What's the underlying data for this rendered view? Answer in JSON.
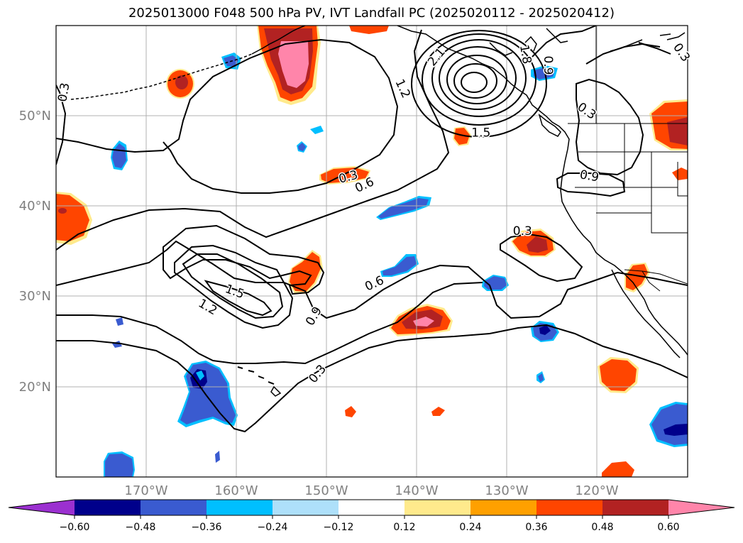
{
  "title": "2025013000 F048 500 hPa PV, IVT Landfall PC (2025020112 - 2025020412)",
  "map": {
    "projection": "plate carree",
    "lon_range": [
      -180,
      -110
    ],
    "lat_range": [
      10,
      60
    ],
    "grid": true,
    "lat_ticks": [
      {
        "value": 50,
        "label": "50°N"
      },
      {
        "value": 40,
        "label": "40°N"
      },
      {
        "value": 30,
        "label": "30°N"
      },
      {
        "value": 20,
        "label": "20°N"
      }
    ],
    "lon_ticks": [
      {
        "value": -170,
        "label": "170°W"
      },
      {
        "value": -160,
        "label": "160°W"
      },
      {
        "value": -150,
        "label": "150°W"
      },
      {
        "value": -140,
        "label": "140°W"
      },
      {
        "value": -130,
        "label": "130°W"
      },
      {
        "value": -120,
        "label": "120°W"
      }
    ]
  },
  "colorbar": {
    "ticks": [
      "−0.60",
      "−0.48",
      "−0.36",
      "−0.24",
      "−0.12",
      "0.12",
      "0.24",
      "0.36",
      "0.48",
      "0.60"
    ],
    "colors": [
      "#9b30d0",
      "#00008b",
      "#3a5bd0",
      "#00bfff",
      "#aee0fa",
      "#ffffff",
      "#ffea8c",
      "#ffa000",
      "#ff4500",
      "#b22222",
      "#ff85aa"
    ],
    "extend": "both"
  },
  "contour_labels": [
    {
      "text": "0.3",
      "lon": -179.1,
      "lat": 52.6,
      "angle": -80
    },
    {
      "text": "1.5",
      "lon": -132.9,
      "lat": 48.1,
      "angle": 0
    },
    {
      "text": "1.2",
      "lon": -141.6,
      "lat": 53.0,
      "angle": 65
    },
    {
      "text": "2.1",
      "lon": -137.8,
      "lat": 56.5,
      "angle": -50
    },
    {
      "text": "1.8",
      "lon": -128.0,
      "lat": 56.8,
      "angle": 80
    },
    {
      "text": "0.9",
      "lon": -125.5,
      "lat": 55.6,
      "angle": 90
    },
    {
      "text": "0.3",
      "lon": -121.2,
      "lat": 50.5,
      "angle": 35
    },
    {
      "text": "0.3",
      "lon": -110.7,
      "lat": 57.0,
      "angle": 55
    },
    {
      "text": "0.9",
      "lon": -120.9,
      "lat": 43.3,
      "angle": 10
    },
    {
      "text": "0.3",
      "lon": -147.6,
      "lat": 43.2,
      "angle": -15
    },
    {
      "text": "0.6",
      "lon": -145.8,
      "lat": 42.3,
      "angle": -25
    },
    {
      "text": "0.3",
      "lon": -128.3,
      "lat": 37.2,
      "angle": 0
    },
    {
      "text": "1.5",
      "lon": -160.2,
      "lat": 30.5,
      "angle": 20
    },
    {
      "text": "1.2",
      "lon": -163.2,
      "lat": 28.8,
      "angle": 30
    },
    {
      "text": "0.9",
      "lon": -151.4,
      "lat": 27.8,
      "angle": -60
    },
    {
      "text": "0.6",
      "lon": -144.7,
      "lat": 31.4,
      "angle": -25
    },
    {
      "text": "0.3",
      "lon": -151.0,
      "lat": 21.4,
      "angle": -50
    }
  ]
}
